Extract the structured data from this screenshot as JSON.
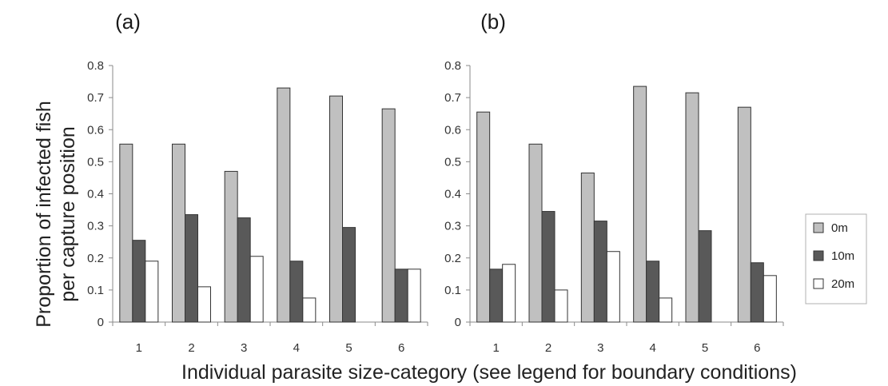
{
  "figure": {
    "ylabel_line1": "Proportion of infected fish",
    "ylabel_line2": "per capture position",
    "xlabel": "Individual parasite size-category (see legend for boundary conditions)"
  },
  "legend": [
    {
      "label": "0m",
      "color": "#c0c0c0"
    },
    {
      "label": "10m",
      "color": "#595959"
    },
    {
      "label": "20m",
      "color": "#ffffff"
    }
  ],
  "chart_data": [
    {
      "type": "bar",
      "panel": "(a)",
      "categories": [
        "1",
        "2",
        "3",
        "4",
        "5",
        "6"
      ],
      "ylim": [
        0,
        0.8
      ],
      "yticks": [
        "0",
        "0.1",
        "0.2",
        "0.3",
        "0.4",
        "0.5",
        "0.6",
        "0.7",
        "0.8"
      ],
      "series": [
        {
          "name": "0m",
          "values": [
            0.555,
            0.555,
            0.47,
            0.73,
            0.705,
            0.665
          ]
        },
        {
          "name": "10m",
          "values": [
            0.255,
            0.335,
            0.325,
            0.19,
            0.295,
            0.165
          ]
        },
        {
          "name": "20m",
          "values": [
            0.19,
            0.11,
            0.205,
            0.075,
            null,
            0.165
          ]
        }
      ]
    },
    {
      "type": "bar",
      "panel": "(b)",
      "categories": [
        "1",
        "2",
        "3",
        "4",
        "5",
        "6"
      ],
      "ylim": [
        0,
        0.8
      ],
      "yticks": [
        "0",
        "0.1",
        "0.2",
        "0.3",
        "0.4",
        "0.5",
        "0.6",
        "0.7",
        "0.8"
      ],
      "series": [
        {
          "name": "0m",
          "values": [
            0.655,
            0.555,
            0.465,
            0.735,
            0.715,
            0.67
          ]
        },
        {
          "name": "10m",
          "values": [
            0.165,
            0.345,
            0.315,
            0.19,
            0.285,
            0.185
          ]
        },
        {
          "name": "20m",
          "values": [
            0.18,
            0.1,
            0.22,
            0.075,
            null,
            0.145
          ]
        }
      ]
    }
  ]
}
